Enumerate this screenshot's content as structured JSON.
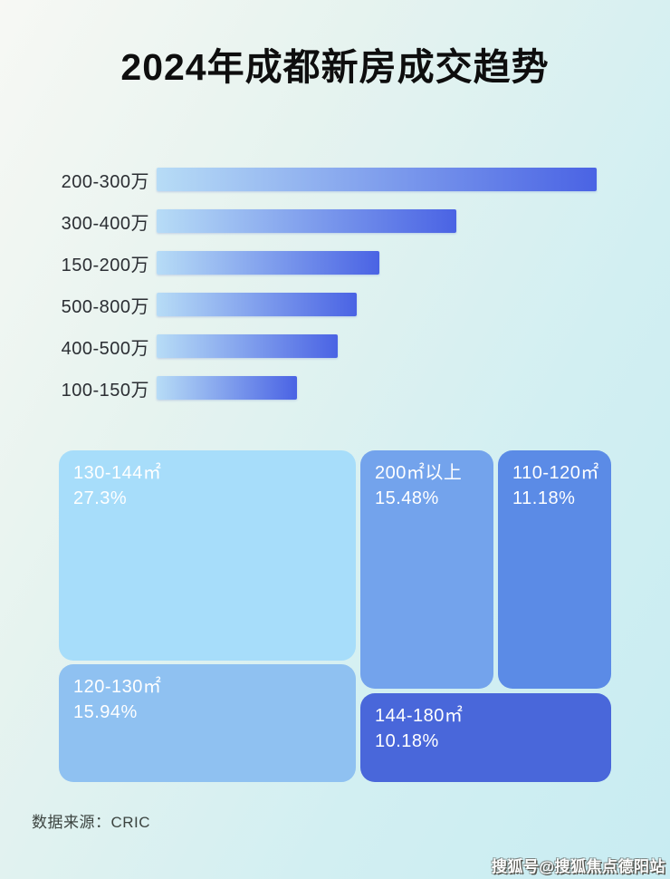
{
  "page": {
    "title": "2024年成都新房成交趋势",
    "source_label": "数据来源：CRIC",
    "watermark": "搜狐号@搜狐焦点德阳站"
  },
  "colors": {
    "background_start": "#f7f8f4",
    "background_end": "#c8ecf2",
    "bar_gradient_start": "#b7dcf6",
    "bar_gradient_end": "#4a63e4",
    "title_color": "#0e0e0e",
    "bar_label_color": "#2b2e33",
    "treemap_text_color": "#ffffff"
  },
  "bar_chart": {
    "rows": [
      {
        "label": "200-300万",
        "percent": 100
      },
      {
        "label": "300-400万",
        "percent": 68.1
      },
      {
        "label": "150-200万",
        "percent": 50.6
      },
      {
        "label": "500-800万",
        "percent": 45.5
      },
      {
        "label": "400-500万",
        "percent": 41.2
      },
      {
        "label": "100-150万",
        "percent": 31.9
      }
    ]
  },
  "treemap": {
    "boxes": [
      {
        "label": "130-144㎡",
        "value_label": "27.3%",
        "value": 27.3,
        "color": "#a7ddfa"
      },
      {
        "label": "120-130㎡",
        "value_label": "15.94%",
        "value": 15.94,
        "color": "#8fc1f1"
      },
      {
        "label": "200㎡以上",
        "value_label": "15.48%",
        "value": 15.48,
        "color": "#73a3ec"
      },
      {
        "label": "110-120㎡",
        "value_label": "11.18%",
        "value": 11.18,
        "color": "#5b8be6"
      },
      {
        "label": "144-180㎡",
        "value_label": "10.18%",
        "value": 10.18,
        "color": "#4967da"
      }
    ]
  },
  "chart_data": [
    {
      "type": "bar",
      "orientation": "horizontal",
      "title": "2024年成都新房成交趋势",
      "categories": [
        "200-300万",
        "300-400万",
        "150-200万",
        "500-800万",
        "400-500万",
        "100-150万"
      ],
      "values": [
        100,
        68.1,
        50.6,
        45.5,
        41.2,
        31.9
      ],
      "value_note": "no numeric axis shown; values are relative bar lengths as % of the longest bar",
      "xlabel": "",
      "ylabel": "",
      "grid": false,
      "legend": false,
      "bar_gradient": [
        "#b7dcf6",
        "#4a63e4"
      ]
    },
    {
      "type": "treemap",
      "title": "",
      "labels": [
        "130-144㎡",
        "120-130㎡",
        "200㎡以上",
        "110-120㎡",
        "144-180㎡"
      ],
      "values": [
        27.3,
        15.94,
        15.48,
        11.18,
        10.18
      ],
      "value_unit": "%",
      "colors": [
        "#a7ddfa",
        "#8fc1f1",
        "#73a3ec",
        "#5b8be6",
        "#4967da"
      ],
      "legend": false
    }
  ]
}
